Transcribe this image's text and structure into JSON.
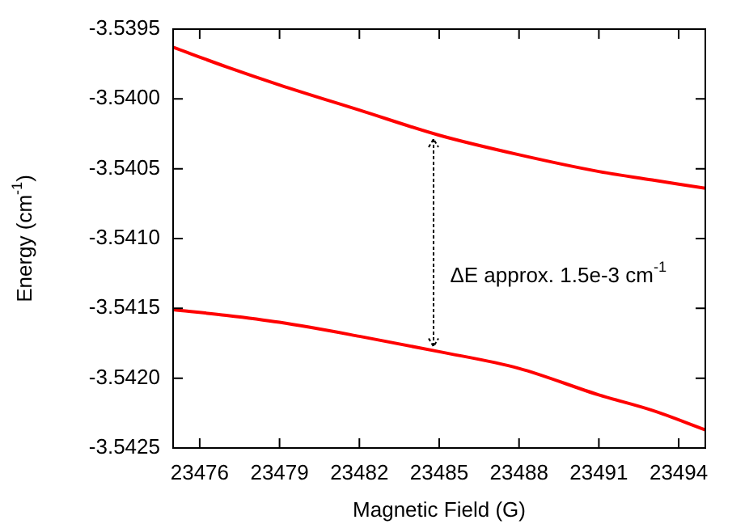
{
  "chart_data": {
    "type": "line",
    "xlabel": "Magnetic Field (G)",
    "ylabel": "Energy (cm$^{-1}$)",
    "x": [
      23475,
      23477,
      23479,
      23482,
      23485,
      23488,
      23491,
      23493,
      23495
    ],
    "series": [
      {
        "color": "#ff0000",
        "values": [
          -3.53963,
          -3.53977,
          -3.5399,
          -3.54008,
          -3.54026,
          -3.5404,
          -3.54052,
          -3.54058,
          -3.54064
        ]
      },
      {
        "color": "#ff0000",
        "values": [
          -3.54151,
          -3.54155,
          -3.5416,
          -3.5417,
          -3.54181,
          -3.54193,
          -3.54212,
          -3.54223,
          -3.54237
        ]
      }
    ],
    "xlim": [
      23475,
      23495
    ],
    "xticks": [
      23476,
      23479,
      23482,
      23485,
      23488,
      23491,
      23494
    ],
    "ylim": [
      -3.5425,
      -3.5395
    ],
    "yticks": [
      -3.5425,
      {
        "value": -3.542,
        "label": "-3.5420"
      },
      -3.5415,
      {
        "value": -3.541,
        "label": "-3.5410"
      },
      -3.5405,
      {
        "value": -3.54,
        "label": "-3.5400"
      },
      -3.5395
    ],
    "annotations": [
      "ΔE approx. 1.5e-3 cm$^{-1}$"
    ],
    "grid": false,
    "legend": false,
    "marker": "none",
    "line_style": "solid"
  }
}
